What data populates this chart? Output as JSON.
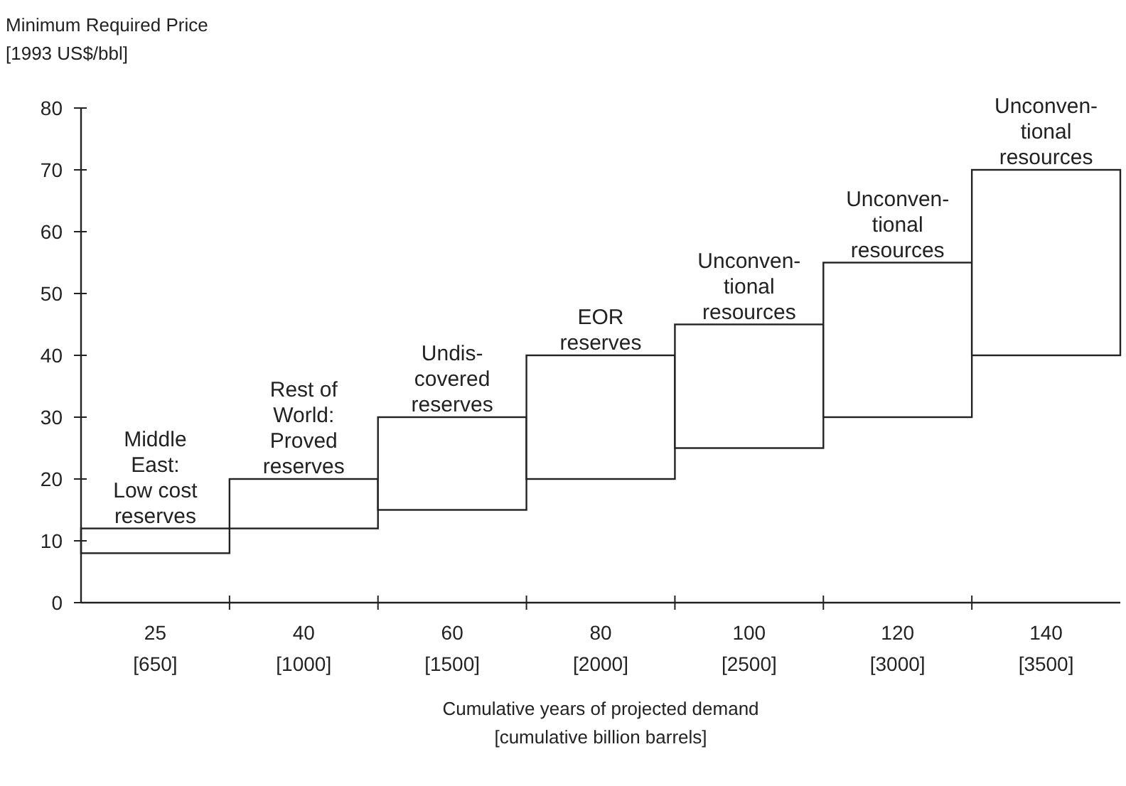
{
  "chart_data": {
    "type": "bar",
    "ylabel": "Minimum Required Price\n[1993 US$/bbl]",
    "xlabel": "Cumulative years of projected demand\n[cumulative billion barrels]",
    "categories": [
      "25\n[650]",
      "40\n[1000]",
      "60\n[1500]",
      "80\n[2000]",
      "100\n[2500]",
      "120\n[3000]",
      "140\n[3500]"
    ],
    "base": [
      8,
      12,
      15,
      20,
      25,
      30,
      40
    ],
    "values": [
      4,
      8,
      15,
      20,
      20,
      25,
      30
    ],
    "color": "#ffffff",
    "ylim": [
      0,
      80
    ],
    "yticks": [
      0,
      10,
      20,
      30,
      40,
      50,
      60,
      70,
      80
    ],
    "grid": false,
    "annotations": [
      {
        "text": "Middle\nEast:\nLow cost\nreserves",
        "x": "25\n[650]",
        "y": 12
      },
      {
        "text": "Rest of\nWorld:\nProved\nreserves",
        "x": "40\n[1000]",
        "y": 20
      },
      {
        "text": "Undis-\ncovered\nreserves",
        "x": "60\n[1500]",
        "y": 30
      },
      {
        "text": "EOR\nreserves",
        "x": "80\n[2000]",
        "y": 40
      },
      {
        "text": "Unconven-\ntional\nresources",
        "x": "100\n[2500]",
        "y": 45
      },
      {
        "text": "Unconven-\ntional\nresources",
        "x": "120\n[3000]",
        "y": 55
      },
      {
        "text": "Unconven-\ntional\nresources",
        "x": "140\n[3500]",
        "y": 70
      }
    ]
  }
}
